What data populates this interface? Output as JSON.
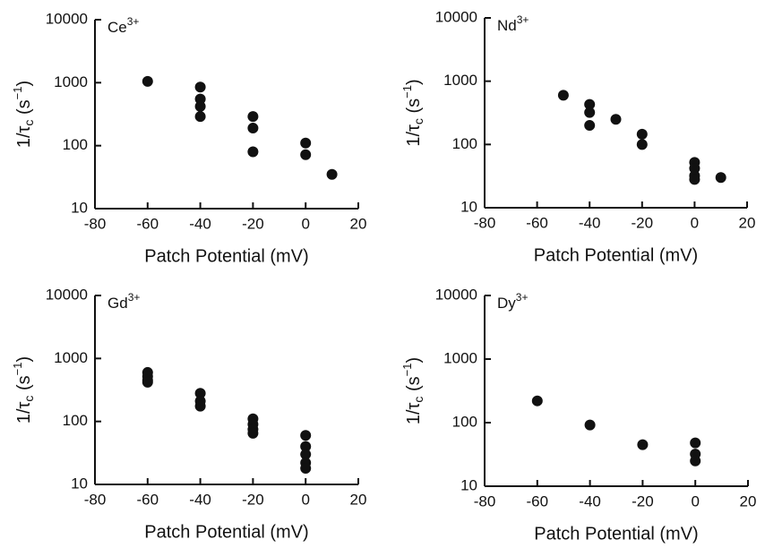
{
  "chart_data": [
    {
      "type": "scatter",
      "label": {
        "text": "Ce",
        "sup": "3+"
      },
      "xlabel": "Patch Potential (mV)",
      "ylabel": {
        "main": "1/τ",
        "sub": "c",
        "open": " (s",
        "sup": "−1",
        "close": ")"
      },
      "x": [
        -60,
        -40,
        -40,
        -40,
        -40,
        -20,
        -20,
        -20,
        0,
        0,
        10
      ],
      "y": [
        1050,
        850,
        550,
        420,
        290,
        290,
        190,
        80,
        110,
        72,
        35
      ],
      "xlim": [
        -80,
        20
      ],
      "ylim": [
        10,
        10000
      ],
      "xticks": [
        -80,
        -60,
        -40,
        -20,
        0,
        20
      ],
      "yticks": [
        10,
        100,
        1000,
        10000
      ],
      "yscale": "log",
      "color": "#111111"
    },
    {
      "type": "scatter",
      "label": {
        "text": "Nd",
        "sup": "3+"
      },
      "xlabel": "Patch Potential (mV)",
      "ylabel": {
        "main": "1/τ",
        "sub": "c",
        "open": " (s",
        "sup": "−1",
        "close": ")"
      },
      "x": [
        -50,
        -40,
        -40,
        -40,
        -30,
        -20,
        -20,
        0,
        0,
        0,
        0,
        10
      ],
      "y": [
        600,
        430,
        320,
        200,
        250,
        145,
        100,
        52,
        42,
        32,
        28,
        30
      ],
      "xlim": [
        -80,
        20
      ],
      "ylim": [
        10,
        10000
      ],
      "xticks": [
        -80,
        -60,
        -40,
        -20,
        0,
        20
      ],
      "yticks": [
        10,
        100,
        1000,
        10000
      ],
      "yscale": "log",
      "color": "#111111"
    },
    {
      "type": "scatter",
      "label": {
        "text": "Gd",
        "sup": "3+"
      },
      "xlabel": "Patch Potential (mV)",
      "ylabel": {
        "main": "1/τ",
        "sub": "c",
        "open": " (s",
        "sup": "−1",
        "close": ")"
      },
      "x": [
        -60,
        -60,
        -60,
        -60,
        -40,
        -40,
        -40,
        -20,
        -20,
        -20,
        -20,
        0,
        0,
        0,
        0,
        0
      ],
      "y": [
        600,
        520,
        450,
        420,
        280,
        210,
        175,
        110,
        90,
        75,
        65,
        60,
        40,
        30,
        22,
        18
      ],
      "xlim": [
        -80,
        20
      ],
      "ylim": [
        10,
        10000
      ],
      "xticks": [
        -80,
        -60,
        -40,
        -20,
        0,
        20
      ],
      "yticks": [
        10,
        100,
        1000,
        10000
      ],
      "yscale": "log",
      "color": "#111111"
    },
    {
      "type": "scatter",
      "label": {
        "text": "Dy",
        "sup": "3+"
      },
      "xlabel": "Patch Potential (mV)",
      "ylabel": {
        "main": "1/τ",
        "sub": "c",
        "open": " (s",
        "sup": "−1",
        "close": ")"
      },
      "x": [
        -60,
        -40,
        -20,
        0,
        0,
        0
      ],
      "y": [
        220,
        92,
        45,
        48,
        32,
        25
      ],
      "xlim": [
        -80,
        20
      ],
      "ylim": [
        10,
        10000
      ],
      "xticks": [
        -80,
        -60,
        -40,
        -20,
        0,
        20
      ],
      "yticks": [
        10,
        100,
        1000,
        10000
      ],
      "yscale": "log",
      "color": "#111111"
    }
  ]
}
